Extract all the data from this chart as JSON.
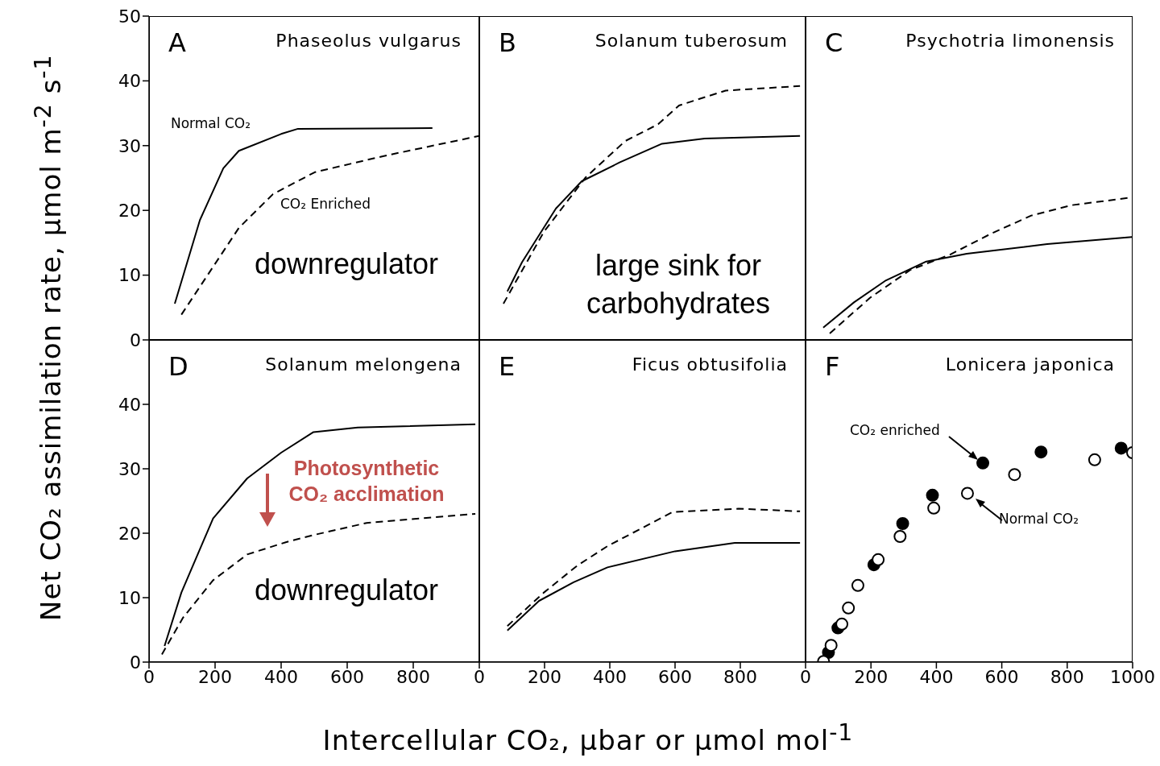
{
  "chart_data": [
    {
      "type": "line",
      "title": "A",
      "subtitle": "Phaseolus vulgarus",
      "ylabel": "Net CO₂ assimilation rate, μmol m$^{-2}$ s$^{-1}$",
      "xlim": [
        0,
        1000
      ],
      "xticks": [
        0,
        200,
        400,
        600,
        800
      ],
      "ylim": [
        0,
        50
      ],
      "yticks": [
        0,
        10,
        20,
        30,
        40,
        50
      ],
      "tick_labels": "y",
      "annotations": [
        "downregulator"
      ],
      "series": [
        {
          "name": "Normal CO₂",
          "color": "#000000",
          "line_style": "solid",
          "x": [
            78,
            154,
            225,
            272,
            400,
            451,
            858
          ],
          "values": [
            5.6,
            18.5,
            26.5,
            29.2,
            31.8,
            32.6,
            32.7
          ]
        },
        {
          "name": "CO₂ Enriched",
          "color": "#000000",
          "line_style": "dashed",
          "x": [
            98,
            272,
            375,
            502,
            711,
            1000
          ],
          "values": [
            3.9,
            17.3,
            22.5,
            25.9,
            28.4,
            31.5
          ]
        }
      ]
    },
    {
      "type": "line",
      "title": "B",
      "subtitle": "Solanum tuberosum",
      "xlim": [
        0,
        1000
      ],
      "xticks": [
        0,
        200,
        400,
        600,
        800
      ],
      "ylim": [
        0,
        50
      ],
      "yticks": [
        0,
        10,
        20,
        30,
        40,
        50
      ],
      "tick_labels": false,
      "annotations": [
        "large sink for carbohydrates"
      ],
      "series": [
        {
          "color": "#000000",
          "line_style": "solid",
          "x": [
            86,
            131,
            235,
            314,
            430,
            560,
            691,
            983
          ],
          "values": [
            7.5,
            12,
            20.3,
            24.5,
            27.4,
            30.3,
            31.1,
            31.5
          ]
        },
        {
          "color": "#000000",
          "line_style": "dashed",
          "x": [
            74,
            198,
            326,
            447,
            548,
            612,
            755,
            983
          ],
          "values": [
            5.6,
            16.7,
            25.1,
            30.7,
            33.3,
            36.2,
            38.5,
            39.2
          ]
        }
      ]
    },
    {
      "type": "line",
      "title": "C",
      "subtitle": "Psychotria limonensis",
      "xlim": [
        0,
        1000
      ],
      "xticks": [
        0,
        200,
        400,
        600,
        800
      ],
      "ylim": [
        0,
        50
      ],
      "yticks": [
        0,
        10,
        20,
        30,
        40,
        50
      ],
      "tick_labels": false,
      "series": [
        {
          "color": "#000000",
          "line_style": "solid",
          "x": [
            54,
            148,
            246,
            369,
            493,
            739,
            998
          ],
          "values": [
            1.9,
            5.8,
            9.2,
            12.1,
            13.3,
            14.8,
            15.9
          ]
        },
        {
          "color": "#000000",
          "line_style": "dashed",
          "x": [
            74,
            197,
            320,
            443,
            567,
            690,
            813,
            998
          ],
          "values": [
            1.0,
            6.5,
            10.8,
            13.2,
            16.4,
            19.2,
            20.8,
            22.0
          ]
        }
      ]
    },
    {
      "type": "line",
      "title": "D",
      "subtitle": "Solanum melongena",
      "xlim": [
        0,
        1000
      ],
      "xticks": [
        0,
        200,
        400,
        600,
        800
      ],
      "ylim": [
        0,
        50
      ],
      "yticks": [
        0,
        10,
        20,
        30,
        40
      ],
      "annotations": [
        "Photosynthetic CO₂ acclimation",
        "downregulator"
      ],
      "series": [
        {
          "color": "#000000",
          "line_style": "solid",
          "x": [
            47,
            98,
            194,
            297,
            400,
            498,
            632,
            988
          ],
          "values": [
            2.5,
            10.8,
            22.3,
            28.5,
            32.5,
            35.7,
            36.4,
            36.9
          ]
        },
        {
          "color": "#000000",
          "line_style": "dashed",
          "x": [
            39,
            103,
            194,
            297,
            414,
            505,
            659,
            988
          ],
          "values": [
            1.2,
            6.9,
            12.7,
            16.7,
            18.6,
            19.8,
            21.6,
            23.0
          ]
        }
      ]
    },
    {
      "type": "line",
      "title": "E",
      "subtitle": "Ficus obtusifolia",
      "xlabel": "Intercellular CO₂, μbar or μmol mol$^{-1}$",
      "xlim": [
        0,
        1000
      ],
      "xticks": [
        0,
        200,
        400,
        600,
        800
      ],
      "ylim": [
        0,
        50
      ],
      "yticks": [
        0,
        10,
        20,
        30,
        40,
        50
      ],
      "tick_labels": "x",
      "series": [
        {
          "color": "#000000",
          "line_style": "solid",
          "x": [
            86,
            183,
            289,
            393,
            600,
            783,
            983
          ],
          "values": [
            4.9,
            9.5,
            12.4,
            14.7,
            17.2,
            18.5,
            18.5
          ]
        },
        {
          "color": "#000000",
          "line_style": "dashed",
          "x": [
            86,
            198,
            301,
            393,
            593,
            795,
            983
          ],
          "values": [
            5.6,
            10.8,
            15.0,
            18.0,
            23.3,
            23.8,
            23.4
          ]
        }
      ]
    },
    {
      "type": "scatter",
      "title": "F",
      "subtitle": "Lonicera japonica",
      "xlim": [
        0,
        1000
      ],
      "xticks": [
        0,
        200,
        400,
        600,
        800,
        1000
      ],
      "ylim": [
        0,
        50
      ],
      "yticks": [
        0,
        10,
        20,
        30,
        40,
        50
      ],
      "tick_labels": "x",
      "marker": "circle",
      "series": [
        {
          "name": "CO₂ enriched",
          "color": "#000000",
          "x": [
            70,
            99,
            209,
            297,
            388,
            542,
            720,
            965
          ],
          "values": [
            1.5,
            5.3,
            15.1,
            21.5,
            25.9,
            30.9,
            32.6,
            33.2
          ]
        },
        {
          "name": "Normal CO₂",
          "color": "#000000",
          "x": [
            55,
            78,
            111,
            131,
            160,
            222,
            289,
            392,
            495,
            639,
            884,
            1000
          ],
          "values": [
            0.1,
            2.6,
            5.9,
            8.4,
            11.9,
            15.9,
            19.5,
            23.9,
            26.2,
            29.1,
            31.4,
            32.5
          ]
        }
      ]
    }
  ]
}
